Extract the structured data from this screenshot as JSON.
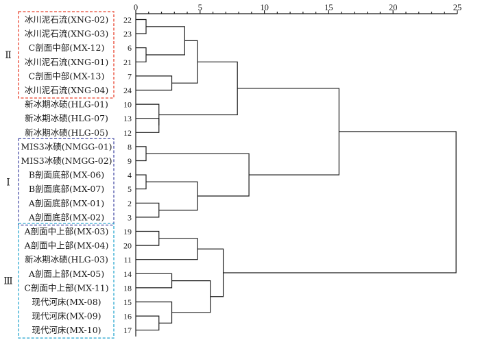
{
  "chart_data": {
    "type": "dendrogram",
    "x_axis": {
      "ticks": [
        "0",
        "5",
        "10",
        "15",
        "20",
        "25"
      ],
      "range": [
        0,
        25
      ]
    },
    "leaves": [
      {
        "id": "22",
        "label": "冰川泥石流(XNG-02)"
      },
      {
        "id": "23",
        "label": "冰川泥石流(XNG-03)"
      },
      {
        "id": "6",
        "label": "C剖面中部(MX-12)"
      },
      {
        "id": "21",
        "label": "冰川泥石流(XNG-01)"
      },
      {
        "id": "7",
        "label": "C剖面中部(MX-13)"
      },
      {
        "id": "24",
        "label": "冰川泥石流(XNG-04)"
      },
      {
        "id": "10",
        "label": "新冰期冰碛(HLG-01)"
      },
      {
        "id": "13",
        "label": "新冰期冰碛(HLG-07)"
      },
      {
        "id": "12",
        "label": "新冰期冰碛(HLG-05)"
      },
      {
        "id": "8",
        "label": "MIS3冰碛(NMGG-01)"
      },
      {
        "id": "9",
        "label": "MIS3冰碛(NMGG-02)"
      },
      {
        "id": "4",
        "label": "B剖面底部(MX-06)"
      },
      {
        "id": "5",
        "label": "B剖面底部(MX-07)"
      },
      {
        "id": "2",
        "label": "A剖面底部(MX-01)"
      },
      {
        "id": "3",
        "label": "A剖面底部(MX-02)"
      },
      {
        "id": "19",
        "label": "A剖面中上部(MX-03)"
      },
      {
        "id": "20",
        "label": "A剖面中上部(MX-04)"
      },
      {
        "id": "11",
        "label": "新冰期冰碛(HLG-03)"
      },
      {
        "id": "14",
        "label": "A剖面上部(MX-05)"
      },
      {
        "id": "18",
        "label": "C剖面中上部(MX-11)"
      },
      {
        "id": "15",
        "label": "现代河床(MX-08)"
      },
      {
        "id": "16",
        "label": "现代河床(MX-09)"
      },
      {
        "id": "17",
        "label": "现代河床(MX-10)"
      }
    ],
    "merges": [
      {
        "id": "a1",
        "left": "L0",
        "right": "L1",
        "distance": 0.8
      },
      {
        "id": "a2",
        "left": "L2",
        "right": "L3",
        "distance": 0.8
      },
      {
        "id": "a3",
        "left": "a1",
        "right": "a2",
        "distance": 3.8
      },
      {
        "id": "a4",
        "left": "L4",
        "right": "L5",
        "distance": 2.8
      },
      {
        "id": "a5",
        "left": "a3",
        "right": "a4",
        "distance": 4.8
      },
      {
        "id": "b1",
        "left": "L7",
        "right": "L8",
        "distance": 1.8
      },
      {
        "id": "b2",
        "left": "L6",
        "right": "b1",
        "distance": 1.8
      },
      {
        "id": "c1",
        "left": "a5",
        "right": "b2",
        "distance": 7.9
      },
      {
        "id": "d1",
        "left": "L9",
        "right": "L10",
        "distance": 0.8
      },
      {
        "id": "d2",
        "left": "L11",
        "right": "L12",
        "distance": 0.8
      },
      {
        "id": "d3",
        "left": "L13",
        "right": "L14",
        "distance": 1.8
      },
      {
        "id": "d4",
        "left": "d2",
        "right": "d3",
        "distance": 4.8
      },
      {
        "id": "d5",
        "left": "d1",
        "right": "d4",
        "distance": 8.8
      },
      {
        "id": "e1",
        "left": "c1",
        "right": "d5",
        "distance": 15.8
      },
      {
        "id": "f1",
        "left": "L15",
        "right": "L16",
        "distance": 1.8
      },
      {
        "id": "f2",
        "left": "f1",
        "right": "L17",
        "distance": 4.8
      },
      {
        "id": "f3",
        "left": "L18",
        "right": "L19",
        "distance": 2.8
      },
      {
        "id": "f4",
        "left": "L21",
        "right": "L22",
        "distance": 1.8
      },
      {
        "id": "f5",
        "left": "L20",
        "right": "f4",
        "distance": 2.8
      },
      {
        "id": "f6",
        "left": "f3",
        "right": "f5",
        "distance": 5.8
      },
      {
        "id": "f7",
        "left": "f2",
        "right": "f6",
        "distance": 6.8
      },
      {
        "id": "g1",
        "left": "e1",
        "right": "f7",
        "distance": 24.9
      }
    ],
    "groups": [
      {
        "label": "Ⅱ",
        "color": "#e8432e",
        "first_leaf": 0,
        "last_leaf": 5
      },
      {
        "label": "Ⅰ",
        "color": "#4a50a8",
        "first_leaf": 9,
        "last_leaf": 14
      },
      {
        "label": "Ⅲ",
        "color": "#2aa7cf",
        "first_leaf": 15,
        "last_leaf": 22
      }
    ]
  }
}
